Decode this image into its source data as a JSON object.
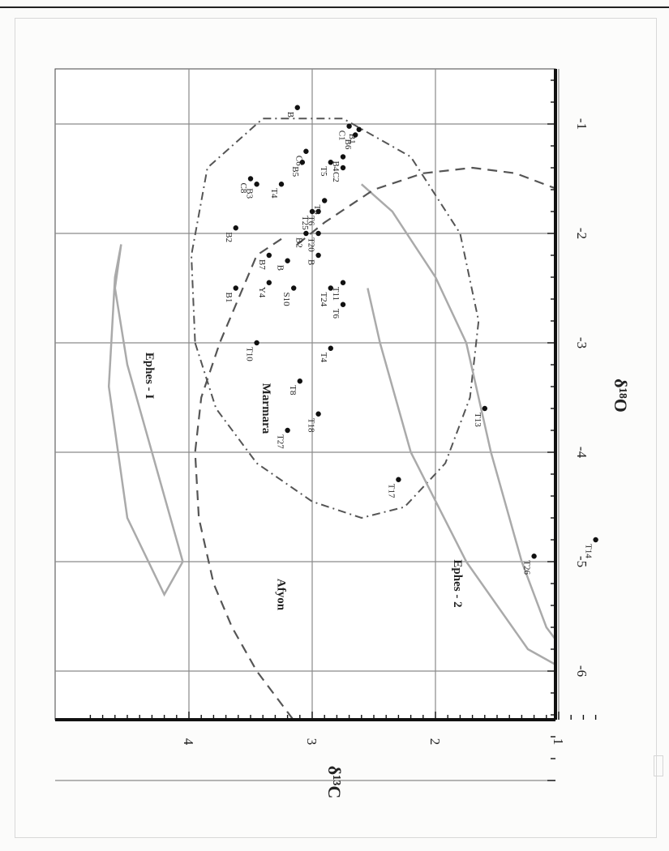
{
  "chart_data": {
    "type": "scatter",
    "orientation": "rotated-90-clockwise",
    "x_axis_label": "δ¹⁸O",
    "y_axis_label": "δ¹³C",
    "xlim": [
      -7.2,
      -0.6
    ],
    "ylim": [
      0.7,
      4.8
    ],
    "x_ticks": [
      -7,
      -6,
      -5,
      -4,
      -3,
      -2,
      -1
    ],
    "x_tick_labels": [
      "",
      "-6",
      "-5",
      "-4",
      "-3",
      "-2",
      "-1"
    ],
    "y_ticks": [
      1,
      2,
      3,
      4
    ],
    "y_tick_labels": [
      "1",
      "2",
      "3",
      "4"
    ],
    "grid": true,
    "field_labels": [
      "Ephes - I",
      "Marmara",
      "Afyon",
      "Ephes - 2"
    ],
    "points": [
      {
        "label": "B",
        "x": -0.85,
        "y": 3.12
      },
      {
        "label": "C1",
        "x": -1.02,
        "y": 2.7
      },
      {
        "label": "B1",
        "x": -1.05,
        "y": 2.62
      },
      {
        "label": "B6",
        "x": -1.1,
        "y": 2.65
      },
      {
        "label": "B4",
        "x": -1.3,
        "y": 2.75
      },
      {
        "label": "C2",
        "x": -1.4,
        "y": 2.75
      },
      {
        "label": "T5",
        "x": -1.35,
        "y": 2.85
      },
      {
        "label": "C6",
        "x": -1.25,
        "y": 3.05
      },
      {
        "label": "B5",
        "x": -1.35,
        "y": 3.08
      },
      {
        "label": "T4",
        "x": -1.55,
        "y": 3.25
      },
      {
        "label": "C8",
        "x": -1.5,
        "y": 3.5
      },
      {
        "label": "B3",
        "x": -1.55,
        "y": 3.45
      },
      {
        "label": "T3",
        "x": -1.7,
        "y": 2.9
      },
      {
        "label": "T6",
        "x": -1.8,
        "y": 2.95
      },
      {
        "label": "T25",
        "x": -1.8,
        "y": 3.0
      },
      {
        "label": "T20",
        "x": -2.0,
        "y": 2.95
      },
      {
        "label": "B2",
        "x": -2.0,
        "y": 3.05
      },
      {
        "label": "B2",
        "x": -1.95,
        "y": 3.62
      },
      {
        "label": "B7",
        "x": -2.2,
        "y": 3.35
      },
      {
        "label": "B",
        "x": -2.25,
        "y": 3.2
      },
      {
        "label": "B",
        "x": -2.2,
        "y": 2.95
      },
      {
        "label": "T11",
        "x": -2.45,
        "y": 2.75
      },
      {
        "label": "T24",
        "x": -2.5,
        "y": 2.85
      },
      {
        "label": "T6",
        "x": -2.65,
        "y": 2.75
      },
      {
        "label": "S10",
        "x": -2.5,
        "y": 3.15
      },
      {
        "label": "Y4",
        "x": -2.45,
        "y": 3.35
      },
      {
        "label": "B1",
        "x": -2.5,
        "y": 3.62
      },
      {
        "label": "T10",
        "x": -3.0,
        "y": 3.45
      },
      {
        "label": "T4",
        "x": -3.05,
        "y": 2.85
      },
      {
        "label": "T8",
        "x": -3.35,
        "y": 3.1
      },
      {
        "label": "T18",
        "x": -3.65,
        "y": 2.95
      },
      {
        "label": "T27",
        "x": -3.8,
        "y": 3.2
      },
      {
        "label": "T13",
        "x": -3.6,
        "y": 1.6
      },
      {
        "label": "T17",
        "x": -4.25,
        "y": 2.3
      },
      {
        "label": "T26",
        "x": -4.95,
        "y": 1.2
      },
      {
        "label": "T14",
        "x": -4.8,
        "y": 0.7
      }
    ],
    "marmara_boundary": [
      [
        -3.0,
        3.95
      ],
      [
        -3.6,
        3.78
      ],
      [
        -4.1,
        3.45
      ],
      [
        -4.45,
        3.0
      ],
      [
        -4.6,
        2.6
      ],
      [
        -4.5,
        2.25
      ],
      [
        -4.1,
        1.92
      ],
      [
        -3.5,
        1.72
      ],
      [
        -2.8,
        1.65
      ],
      [
        -2.0,
        1.8
      ],
      [
        -1.3,
        2.2
      ],
      [
        -0.95,
        2.75
      ],
      [
        -0.95,
        3.4
      ],
      [
        -1.4,
        3.85
      ],
      [
        -2.2,
        3.98
      ],
      [
        -3.0,
        3.95
      ]
    ],
    "ephes1_boundary": [
      [
        -2.1,
        4.55
      ],
      [
        -2.5,
        4.6
      ],
      [
        -3.2,
        4.5
      ],
      [
        -4.2,
        4.25
      ],
      [
        -5.0,
        4.05
      ],
      [
        -5.3,
        4.2
      ],
      [
        -4.6,
        4.5
      ],
      [
        -3.4,
        4.65
      ],
      [
        -2.4,
        4.6
      ],
      [
        -2.1,
        4.55
      ]
    ],
    "ephes2_boundary": [
      [
        -1.55,
        2.6
      ],
      [
        -1.8,
        2.35
      ],
      [
        -2.4,
        2.0
      ],
      [
        -3.0,
        1.75
      ],
      [
        -4.0,
        1.55
      ],
      [
        -5.0,
        1.3
      ],
      [
        -5.6,
        1.1
      ],
      [
        -5.9,
        0.9
      ],
      [
        -5.95,
        0.75
      ]
    ],
    "ephes2_top": [
      [
        -2.5,
        2.55
      ],
      [
        -3.0,
        2.45
      ],
      [
        -4.0,
        2.2
      ],
      [
        -5.0,
        1.75
      ],
      [
        -5.8,
        1.25
      ],
      [
        -6.05,
        0.85
      ]
    ],
    "afyon_boundary": [
      [
        -2.05,
        3.25
      ],
      [
        -2.2,
        3.45
      ],
      [
        -2.6,
        3.6
      ],
      [
        -3.0,
        3.75
      ],
      [
        -3.5,
        3.9
      ],
      [
        -4.0,
        3.95
      ],
      [
        -4.6,
        3.92
      ],
      [
        -5.2,
        3.8
      ],
      [
        -5.6,
        3.65
      ],
      [
        -6.0,
        3.45
      ],
      [
        -6.6,
        3.05
      ],
      [
        -6.95,
        2.75
      ]
    ],
    "central_dash": [
      [
        -2.1,
        3.12
      ],
      [
        -1.9,
        2.9
      ],
      [
        -1.6,
        2.5
      ],
      [
        -1.45,
        2.1
      ],
      [
        -1.4,
        1.7
      ],
      [
        -1.45,
        1.35
      ],
      [
        -1.6,
        1.0
      ],
      [
        -1.75,
        0.7
      ]
    ]
  }
}
